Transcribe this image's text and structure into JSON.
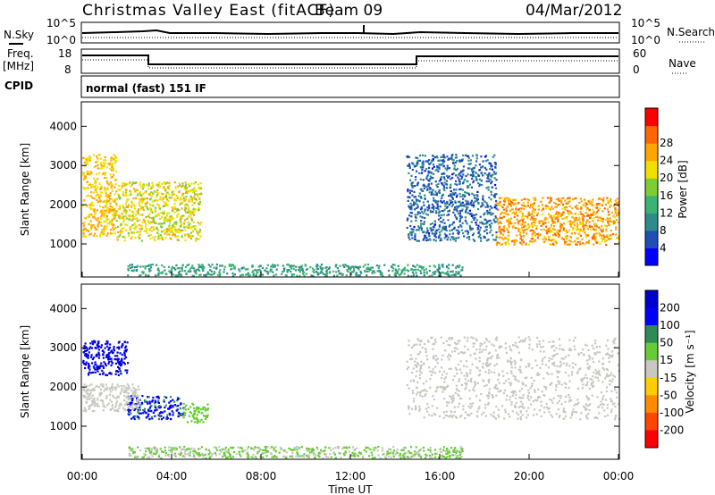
{
  "header": {
    "title": "Christmas Valley East (fitACF)",
    "beam": "Beam 09",
    "date": "04/Mar/2012"
  },
  "params_panel": {
    "nsky_label": "N.Sky",
    "nsky_ticks": [
      "10^5",
      "10^0"
    ],
    "nsearch_label": "N.Search",
    "nsearch_ticks": [
      "10^5",
      "10^0"
    ],
    "freq_label": "Freq.",
    "freq_unit": "[MHz]",
    "freq_ticks": [
      "18",
      "8"
    ],
    "nave_label": "Nave",
    "nave_ticks": [
      "60",
      "0"
    ],
    "cpid_label": "CPID",
    "cpid_value": "normal (fast) 151 IF"
  },
  "chart_data": [
    {
      "type": "heatmap",
      "name": "power",
      "ylabel": "Slant Range [km]",
      "ylim": [
        180,
        4600
      ],
      "yticks": [
        "1000",
        "2000",
        "3000",
        "4000"
      ],
      "xticks": [
        "00:00",
        "04:00",
        "08:00",
        "12:00",
        "16:00",
        "20:00",
        "00:00"
      ],
      "xlim_hours": [
        0,
        24
      ],
      "colorbar": {
        "label": "Power [dB]",
        "ticks": [
          "4",
          "8",
          "12",
          "16",
          "20",
          "24",
          "28"
        ],
        "range": [
          0,
          30
        ],
        "colors": [
          "#0000ff",
          "#1f4fb4",
          "#2e8b8b",
          "#3cb371",
          "#7fcc33",
          "#f0e000",
          "#ffa500",
          "#ff6600",
          "#ff0000"
        ]
      },
      "regions": [
        {
          "t0": 0.0,
          "t1": 1.5,
          "r0": 1200,
          "r1": 3300,
          "value": 20
        },
        {
          "t0": 1.5,
          "t1": 5.3,
          "r0": 1100,
          "r1": 2600,
          "value": 18
        },
        {
          "t0": 14.5,
          "t1": 18.5,
          "r0": 1100,
          "r1": 3300,
          "value": 6
        },
        {
          "t0": 18.5,
          "t1": 24.0,
          "r0": 1000,
          "r1": 2200,
          "value": 22
        },
        {
          "t0": 2.0,
          "t1": 17.0,
          "r0": 200,
          "r1": 500,
          "value": 10
        }
      ]
    },
    {
      "type": "heatmap",
      "name": "velocity",
      "ylabel": "Slant Range [km]",
      "ylim": [
        180,
        4600
      ],
      "yticks": [
        "1000",
        "2000",
        "3000",
        "4000"
      ],
      "xticks": [
        "00:00",
        "04:00",
        "08:00",
        "12:00",
        "16:00",
        "20:00",
        "00:00"
      ],
      "xlim_hours": [
        0,
        24
      ],
      "xlabel": "Time UT",
      "colorbar": {
        "label": "Velocity [m s⁻¹]",
        "ticks": [
          "200",
          "100",
          "50",
          "15",
          "-15",
          "-50",
          "-100",
          "-200"
        ],
        "range": [
          -250,
          250
        ],
        "colors": [
          "#0000cc",
          "#0000ff",
          "#2e8b57",
          "#66cc33",
          "#c8c8c0",
          "#ffcc00",
          "#ff8c00",
          "#ff4500",
          "#ff0000"
        ]
      },
      "regions": [
        {
          "t0": 0.0,
          "t1": 2.0,
          "r0": 2300,
          "r1": 3200,
          "value": 200
        },
        {
          "t0": 2.0,
          "t1": 4.5,
          "r0": 1200,
          "r1": 1800,
          "value": 150
        },
        {
          "t0": 0.0,
          "t1": 2.5,
          "r0": 1400,
          "r1": 2100,
          "value": 0
        },
        {
          "t0": 4.5,
          "t1": 5.6,
          "r0": 1100,
          "r1": 1600,
          "value": 60
        },
        {
          "t0": 14.5,
          "t1": 24.0,
          "r0": 1200,
          "r1": 3300,
          "value": 0
        },
        {
          "t0": 2.0,
          "t1": 17.0,
          "r0": 200,
          "r1": 500,
          "value": 30
        }
      ]
    }
  ]
}
